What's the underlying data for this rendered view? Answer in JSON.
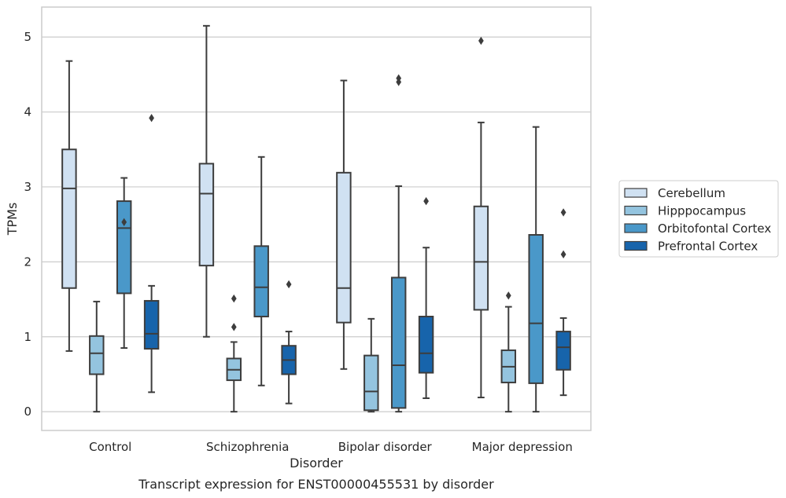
{
  "chart_data": {
    "type": "box",
    "title": "",
    "caption": "Transcript expression for ENST00000455531 by disorder",
    "xlabel": "Disorder",
    "ylabel": "TPMs",
    "ylim": [
      -0.25,
      5.4
    ],
    "yticks": [
      "0",
      "1",
      "2",
      "3",
      "4",
      "5"
    ],
    "grid": "horizontal",
    "legend_position": "right",
    "categories": [
      "Control",
      "Schizophrenia",
      "Bipolar disorder",
      "Major depression"
    ],
    "series": [
      {
        "name": "Cerebellum",
        "color": "#d0e1f2",
        "boxes": [
          {
            "whislo": 0.81,
            "q1": 1.65,
            "med": 2.98,
            "q3": 3.5,
            "whishi": 4.68,
            "fliers": []
          },
          {
            "whislo": 1.0,
            "q1": 1.95,
            "med": 2.91,
            "q3": 3.31,
            "whishi": 5.15,
            "fliers": []
          },
          {
            "whislo": 0.57,
            "q1": 1.19,
            "med": 1.65,
            "q3": 3.19,
            "whishi": 4.42,
            "fliers": []
          },
          {
            "whislo": 0.19,
            "q1": 1.36,
            "med": 2.0,
            "q3": 2.74,
            "whishi": 3.86,
            "fliers": [
              4.95
            ]
          }
        ]
      },
      {
        "name": "Hipppocampus",
        "color": "#94c4df",
        "boxes": [
          {
            "whislo": 0.0,
            "q1": 0.5,
            "med": 0.78,
            "q3": 1.01,
            "whishi": 1.47,
            "fliers": []
          },
          {
            "whislo": 0.0,
            "q1": 0.42,
            "med": 0.56,
            "q3": 0.71,
            "whishi": 0.93,
            "fliers": [
              1.13,
              1.51
            ]
          },
          {
            "whislo": 0.0,
            "q1": 0.02,
            "med": 0.27,
            "q3": 0.75,
            "whishi": 1.24,
            "fliers": []
          },
          {
            "whislo": 0.0,
            "q1": 0.39,
            "med": 0.6,
            "q3": 0.82,
            "whishi": 1.4,
            "fliers": [
              1.55
            ]
          }
        ]
      },
      {
        "name": "Orbitofontal Cortex",
        "color": "#4a98c9",
        "boxes": [
          {
            "whislo": 0.85,
            "q1": 1.58,
            "med": 2.45,
            "q3": 2.81,
            "whishi": 3.12,
            "fliers": [
              2.53
            ]
          },
          {
            "whislo": 0.35,
            "q1": 1.27,
            "med": 1.66,
            "q3": 2.21,
            "whishi": 3.4,
            "fliers": []
          },
          {
            "whislo": 0.0,
            "q1": 0.05,
            "med": 0.62,
            "q3": 1.79,
            "whishi": 3.01,
            "fliers": [
              4.4,
              4.45
            ]
          },
          {
            "whislo": 0.0,
            "q1": 0.38,
            "med": 1.18,
            "q3": 2.36,
            "whishi": 3.8,
            "fliers": []
          }
        ]
      },
      {
        "name": "Prefrontal Cortex",
        "color": "#1764ab",
        "boxes": [
          {
            "whislo": 0.26,
            "q1": 0.84,
            "med": 1.04,
            "q3": 1.48,
            "whishi": 1.68,
            "fliers": [
              3.92
            ]
          },
          {
            "whislo": 0.11,
            "q1": 0.5,
            "med": 0.69,
            "q3": 0.88,
            "whishi": 1.07,
            "fliers": [
              1.7
            ]
          },
          {
            "whislo": 0.18,
            "q1": 0.52,
            "med": 0.78,
            "q3": 1.27,
            "whishi": 2.19,
            "fliers": [
              2.81
            ]
          },
          {
            "whislo": 0.22,
            "q1": 0.56,
            "med": 0.86,
            "q3": 1.07,
            "whishi": 1.25,
            "fliers": [
              2.1,
              2.66
            ]
          }
        ]
      }
    ]
  }
}
